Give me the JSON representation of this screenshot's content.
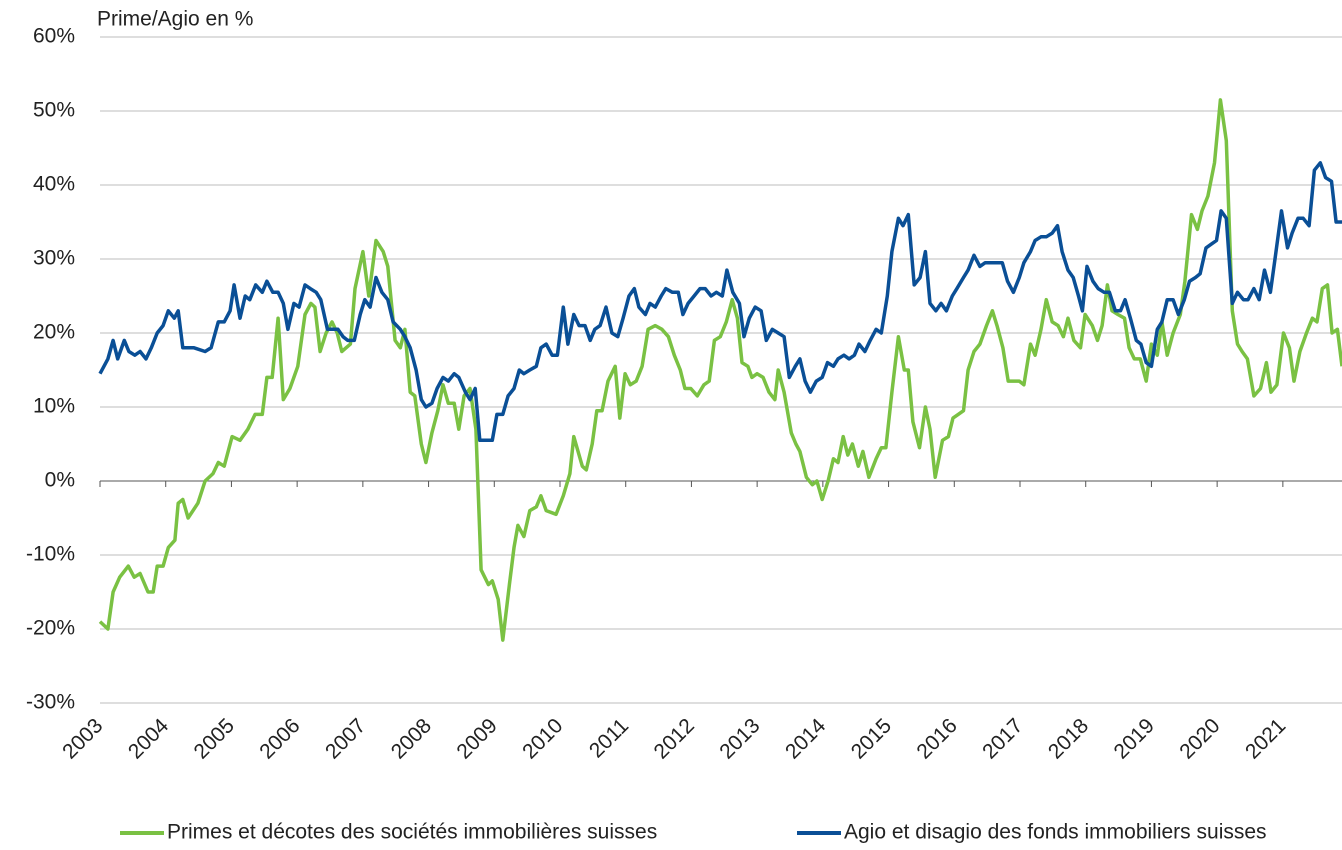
{
  "chart_data": {
    "type": "line",
    "y_axis_label": "Prime/Agio en %",
    "xlim": [
      2003,
      2021.9
    ],
    "xticks": [
      2003,
      2004,
      2005,
      2006,
      2007,
      2008,
      2009,
      2010,
      2011,
      2012,
      2013,
      2014,
      2015,
      2016,
      2017,
      2018,
      2019,
      2020,
      2021
    ],
    "ylim": [
      -30,
      60
    ],
    "yticks": [
      {
        "value": -30,
        "label": "-30%"
      },
      {
        "value": -20,
        "label": "-20%"
      },
      {
        "value": -10,
        "label": "-10%"
      },
      {
        "value": 0,
        "label": "0%"
      },
      {
        "value": 10,
        "label": "10%"
      },
      {
        "value": 20,
        "label": "20%"
      },
      {
        "value": 30,
        "label": "30%"
      },
      {
        "value": 40,
        "label": "40%"
      },
      {
        "value": 50,
        "label": "50%"
      },
      {
        "value": 60,
        "label": "60%"
      }
    ],
    "grid": true,
    "legend": "bottom",
    "series": [
      {
        "name": "Primes et décotes des sociétés immobilières suisses",
        "color": "#7ac143",
        "x": [
          2003.0,
          2003.12,
          2003.2,
          2003.3,
          2003.43,
          2003.52,
          2003.61,
          2003.73,
          2003.81,
          2003.87,
          2003.96,
          2004.04,
          2004.14,
          2004.19,
          2004.26,
          2004.34,
          2004.49,
          2004.6,
          2004.72,
          2004.8,
          2004.89,
          2005.01,
          2005.13,
          2005.25,
          2005.36,
          2005.47,
          2005.54,
          2005.62,
          2005.71,
          2005.79,
          2005.89,
          2006.01,
          2006.12,
          2006.21,
          2006.27,
          2006.35,
          2006.44,
          2006.53,
          2006.61,
          2006.68,
          2006.81,
          2006.88,
          2007.0,
          2007.09,
          2007.2,
          2007.31,
          2007.38,
          2007.49,
          2007.57,
          2007.64,
          2007.72,
          2007.79,
          2007.89,
          2007.96,
          2008.05,
          2008.14,
          2008.22,
          2008.3,
          2008.39,
          2008.46,
          2008.54,
          2008.63,
          2008.72,
          2008.8,
          2008.91,
          2008.97,
          2009.06,
          2009.13,
          2009.23,
          2009.3,
          2009.36,
          2009.45,
          2009.54,
          2009.64,
          2009.71,
          2009.79,
          2009.94,
          2010.05,
          2010.15,
          2010.21,
          2010.34,
          2010.4,
          2010.49,
          2010.56,
          2010.64,
          2010.73,
          2010.84,
          2010.91,
          2010.99,
          2011.07,
          2011.16,
          2011.25,
          2011.34,
          2011.45,
          2011.55,
          2011.65,
          2011.74,
          2011.83,
          2011.9,
          2011.99,
          2012.09,
          2012.19,
          2012.27,
          2012.35,
          2012.44,
          2012.53,
          2012.62,
          2012.7,
          2012.77,
          2012.86,
          2012.92,
          2013.0,
          2013.09,
          2013.18,
          2013.27,
          2013.32,
          2013.41,
          2013.52,
          2013.59,
          2013.65,
          2013.75,
          2013.84,
          2013.91,
          2013.99,
          2014.08,
          2014.16,
          2014.23,
          2014.31,
          2014.38,
          2014.45,
          2014.54,
          2014.61,
          2014.7,
          2014.81,
          2014.89,
          2014.96,
          2015.05,
          2015.15,
          2015.24,
          2015.3,
          2015.37,
          2015.47,
          2015.56,
          2015.63,
          2015.71,
          2015.82,
          2015.91,
          2015.98,
          2016.06,
          2016.14,
          2016.21,
          2016.3,
          2016.39,
          2016.49,
          2016.58,
          2016.65,
          2016.74,
          2016.82,
          2016.91,
          2016.99,
          2017.06,
          2017.16,
          2017.23,
          2017.32,
          2017.4,
          2017.49,
          2017.58,
          2017.66,
          2017.73,
          2017.82,
          2017.92,
          2017.99,
          2018.1,
          2018.18,
          2018.25,
          2018.33,
          2018.4,
          2018.49,
          2018.59,
          2018.66,
          2018.74,
          2018.83,
          2018.92,
          2019.0,
          2019.09,
          2019.16,
          2019.24,
          2019.33,
          2019.44,
          2019.51,
          2019.61,
          2019.7,
          2019.77,
          2019.86,
          2019.96,
          2020.05,
          2020.14,
          2020.23,
          2020.31,
          2020.38,
          2020.46,
          2020.56,
          2020.66,
          2020.75,
          2020.82,
          2020.91,
          2021.01,
          2021.1,
          2021.17,
          2021.26,
          2021.36,
          2021.45,
          2021.52,
          2021.6,
          2021.68,
          2021.75,
          2021.83,
          2021.9
        ],
        "values": [
          -19,
          -20,
          -15,
          -13,
          -11.5,
          -13,
          -12.5,
          -15,
          -15,
          -11.5,
          -11.5,
          -9,
          -8,
          -3,
          -2.5,
          -5,
          -3,
          0,
          1,
          2.5,
          2,
          6,
          5.5,
          7,
          9,
          9,
          14,
          14,
          22,
          11,
          12.5,
          15.5,
          22.5,
          24,
          23.5,
          17.5,
          20,
          21.5,
          20,
          17.5,
          18.5,
          26,
          31,
          25,
          32.5,
          31,
          29,
          19,
          18,
          20.5,
          12,
          11.5,
          5,
          2.5,
          6.5,
          9.5,
          13,
          10.5,
          10.5,
          7,
          11.5,
          12.5,
          7,
          -12,
          -14,
          -13.5,
          -16,
          -21.5,
          -14,
          -9,
          -6,
          -7.5,
          -4,
          -3.5,
          -2,
          -4,
          -4.5,
          -2,
          1,
          6,
          2,
          1.5,
          5,
          9.5,
          9.5,
          13.5,
          15.5,
          8.5,
          14.5,
          13,
          13.5,
          15.5,
          20.5,
          21,
          20.5,
          19.5,
          17,
          15,
          12.5,
          12.5,
          11.5,
          13,
          13.5,
          19,
          19.5,
          21.5,
          24.5,
          22,
          16,
          15.5,
          14,
          14.5,
          14,
          12,
          11,
          15,
          12,
          6.5,
          5,
          4,
          0.5,
          -0.5,
          0,
          -2.5,
          0,
          3,
          2.5,
          6,
          3.5,
          5,
          2,
          4,
          0.5,
          3,
          4.5,
          4.5,
          12,
          19.5,
          15,
          15,
          8,
          4.5,
          10,
          7,
          0.5,
          5.5,
          6,
          8.5,
          9,
          9.5,
          15,
          17.5,
          18.5,
          21,
          23,
          21,
          18,
          13.5,
          13.5,
          13.5,
          13,
          18.5,
          17,
          20.5,
          24.5,
          21.5,
          21,
          19.5,
          22,
          19,
          18,
          22.5,
          21,
          19,
          21,
          26.5,
          23,
          22.5,
          22,
          18,
          16.5,
          16.5,
          13.5,
          18.5,
          17,
          21.5,
          17,
          20,
          22.5,
          27,
          36,
          34,
          36.5,
          38.5,
          43,
          51.5,
          46,
          23,
          18.5,
          17.5,
          16.5,
          11.5,
          12.5,
          16,
          12,
          13,
          20,
          18,
          13.5,
          17.5,
          20,
          22,
          21.5,
          26,
          26.5,
          20,
          20.5,
          15.5
        ]
      },
      {
        "name": "Agio et disagio des fonds immobiliers suisses",
        "color": "#0a4f96",
        "x": [
          2003.0,
          2003.12,
          2003.2,
          2003.27,
          2003.37,
          2003.44,
          2003.53,
          2003.61,
          2003.7,
          2003.78,
          2003.87,
          2003.96,
          2004.04,
          2004.13,
          2004.19,
          2004.26,
          2004.43,
          2004.6,
          2004.69,
          2004.8,
          2004.89,
          2004.98,
          2005.04,
          2005.13,
          2005.21,
          2005.28,
          2005.37,
          2005.47,
          2005.54,
          2005.63,
          2005.71,
          2005.79,
          2005.86,
          2005.95,
          2006.03,
          2006.12,
          2006.2,
          2006.29,
          2006.36,
          2006.46,
          2006.53,
          2006.62,
          2006.7,
          2006.77,
          2006.87,
          2006.96,
          2007.03,
          2007.11,
          2007.2,
          2007.29,
          2007.38,
          2007.46,
          2007.57,
          2007.64,
          2007.72,
          2007.81,
          2007.89,
          2007.96,
          2008.05,
          2008.13,
          2008.22,
          2008.3,
          2008.39,
          2008.46,
          2008.56,
          2008.63,
          2008.71,
          2008.78,
          2008.88,
          2008.97,
          2009.04,
          2009.13,
          2009.21,
          2009.3,
          2009.38,
          2009.45,
          2009.54,
          2009.64,
          2009.71,
          2009.79,
          2009.88,
          2009.96,
          2010.05,
          2010.12,
          2010.21,
          2010.29,
          2010.38,
          2010.46,
          2010.53,
          2010.61,
          2010.7,
          2010.79,
          2010.88,
          2010.96,
          2011.05,
          2011.13,
          2011.2,
          2011.3,
          2011.37,
          2011.45,
          2011.54,
          2011.61,
          2011.71,
          2011.8,
          2011.87,
          2011.95,
          2012.04,
          2012.13,
          2012.21,
          2012.3,
          2012.38,
          2012.47,
          2012.54,
          2012.63,
          2012.73,
          2012.8,
          2012.88,
          2012.97,
          2013.06,
          2013.14,
          2013.23,
          2013.32,
          2013.41,
          2013.49,
          2013.58,
          2013.65,
          2013.73,
          2013.81,
          2013.9,
          2013.99,
          2014.07,
          2014.16,
          2014.23,
          2014.32,
          2014.4,
          2014.48,
          2014.55,
          2014.64,
          2014.72,
          2014.81,
          2014.89,
          2014.98,
          2015.05,
          2015.15,
          2015.22,
          2015.3,
          2015.39,
          2015.48,
          2015.56,
          2015.63,
          2015.72,
          2015.8,
          2015.88,
          2015.97,
          2016.04,
          2016.14,
          2016.21,
          2016.3,
          2016.39,
          2016.47,
          2016.56,
          2016.65,
          2016.73,
          2016.81,
          2016.9,
          2016.99,
          2017.06,
          2017.16,
          2017.23,
          2017.32,
          2017.4,
          2017.49,
          2017.57,
          2017.64,
          2017.73,
          2017.81,
          2017.89,
          2017.95,
          2018.02,
          2018.11,
          2018.19,
          2018.28,
          2018.36,
          2018.45,
          2018.53,
          2018.6,
          2018.68,
          2018.77,
          2018.84,
          2018.92,
          2019.0,
          2019.09,
          2019.16,
          2019.24,
          2019.33,
          2019.41,
          2019.5,
          2019.58,
          2019.67,
          2019.74,
          2019.83,
          2019.91,
          2019.99,
          2020.06,
          2020.14,
          2020.23,
          2020.31,
          2020.4,
          2020.47,
          2020.56,
          2020.64,
          2020.72,
          2020.81,
          2020.88,
          2020.98,
          2021.07,
          2021.14,
          2021.23,
          2021.31,
          2021.4,
          2021.48,
          2021.57,
          2021.65,
          2021.74,
          2021.81,
          2021.9
        ],
        "values": [
          14.5,
          16.5,
          19,
          16.5,
          19,
          17.5,
          17,
          17.5,
          16.5,
          18,
          20,
          21,
          23,
          22,
          23,
          18,
          18,
          17.5,
          18,
          21.5,
          21.5,
          23,
          26.5,
          22,
          25,
          24.5,
          26.5,
          25.5,
          27,
          25.5,
          25.5,
          24,
          20.5,
          24,
          23.5,
          26.5,
          26,
          25.5,
          24.5,
          20.5,
          20.5,
          20.5,
          19.5,
          19,
          19,
          22.5,
          24.5,
          23.5,
          27.5,
          25.5,
          24.5,
          21.5,
          20.5,
          19.5,
          18,
          15,
          11,
          10,
          10.5,
          12.5,
          14,
          13.5,
          14.5,
          14,
          12,
          11,
          12.5,
          5.5,
          5.5,
          5.5,
          9,
          9,
          11.5,
          12.5,
          15,
          14.5,
          15,
          15.5,
          18,
          18.5,
          17,
          17,
          23.5,
          18.5,
          22.5,
          21,
          21,
          19,
          20.5,
          21,
          23.5,
          20,
          19.5,
          22,
          25,
          26,
          23.5,
          22.5,
          24,
          23.5,
          25,
          26,
          25.5,
          25.5,
          22.5,
          24,
          25,
          26,
          26,
          25,
          25.5,
          25,
          28.5,
          25.5,
          24,
          19.5,
          22,
          23.5,
          23,
          19,
          20.5,
          20,
          19.5,
          14,
          15.5,
          16.5,
          13.5,
          12,
          13.5,
          14,
          16,
          15.5,
          16.5,
          17,
          16.5,
          17,
          18.5,
          17.5,
          19,
          20.5,
          20,
          25,
          31,
          35.5,
          34.5,
          36,
          26.5,
          27.5,
          31,
          24,
          23,
          24,
          23,
          25,
          26,
          27.5,
          28.5,
          30.5,
          29,
          29.5,
          29.5,
          29.5,
          29.5,
          27,
          25.5,
          27.5,
          29.5,
          31,
          32.5,
          33,
          33,
          33.5,
          34.5,
          31,
          28.5,
          27.5,
          25,
          23,
          29,
          27,
          26,
          25.5,
          25.5,
          23,
          23,
          24.5,
          22,
          19,
          18.5,
          16,
          15.5,
          20.5,
          21.5,
          24.5,
          24.5,
          22.5,
          24.5,
          27,
          27.5,
          28,
          31.5,
          32,
          32.5,
          36.5,
          35.5,
          24,
          25.5,
          24.5,
          24.5,
          26,
          24.5,
          28.5,
          25.5,
          30,
          36.5,
          31.5,
          33.5,
          35.5,
          35.5,
          34.5,
          42,
          43,
          41,
          40.5,
          35,
          35
        ]
      }
    ]
  }
}
